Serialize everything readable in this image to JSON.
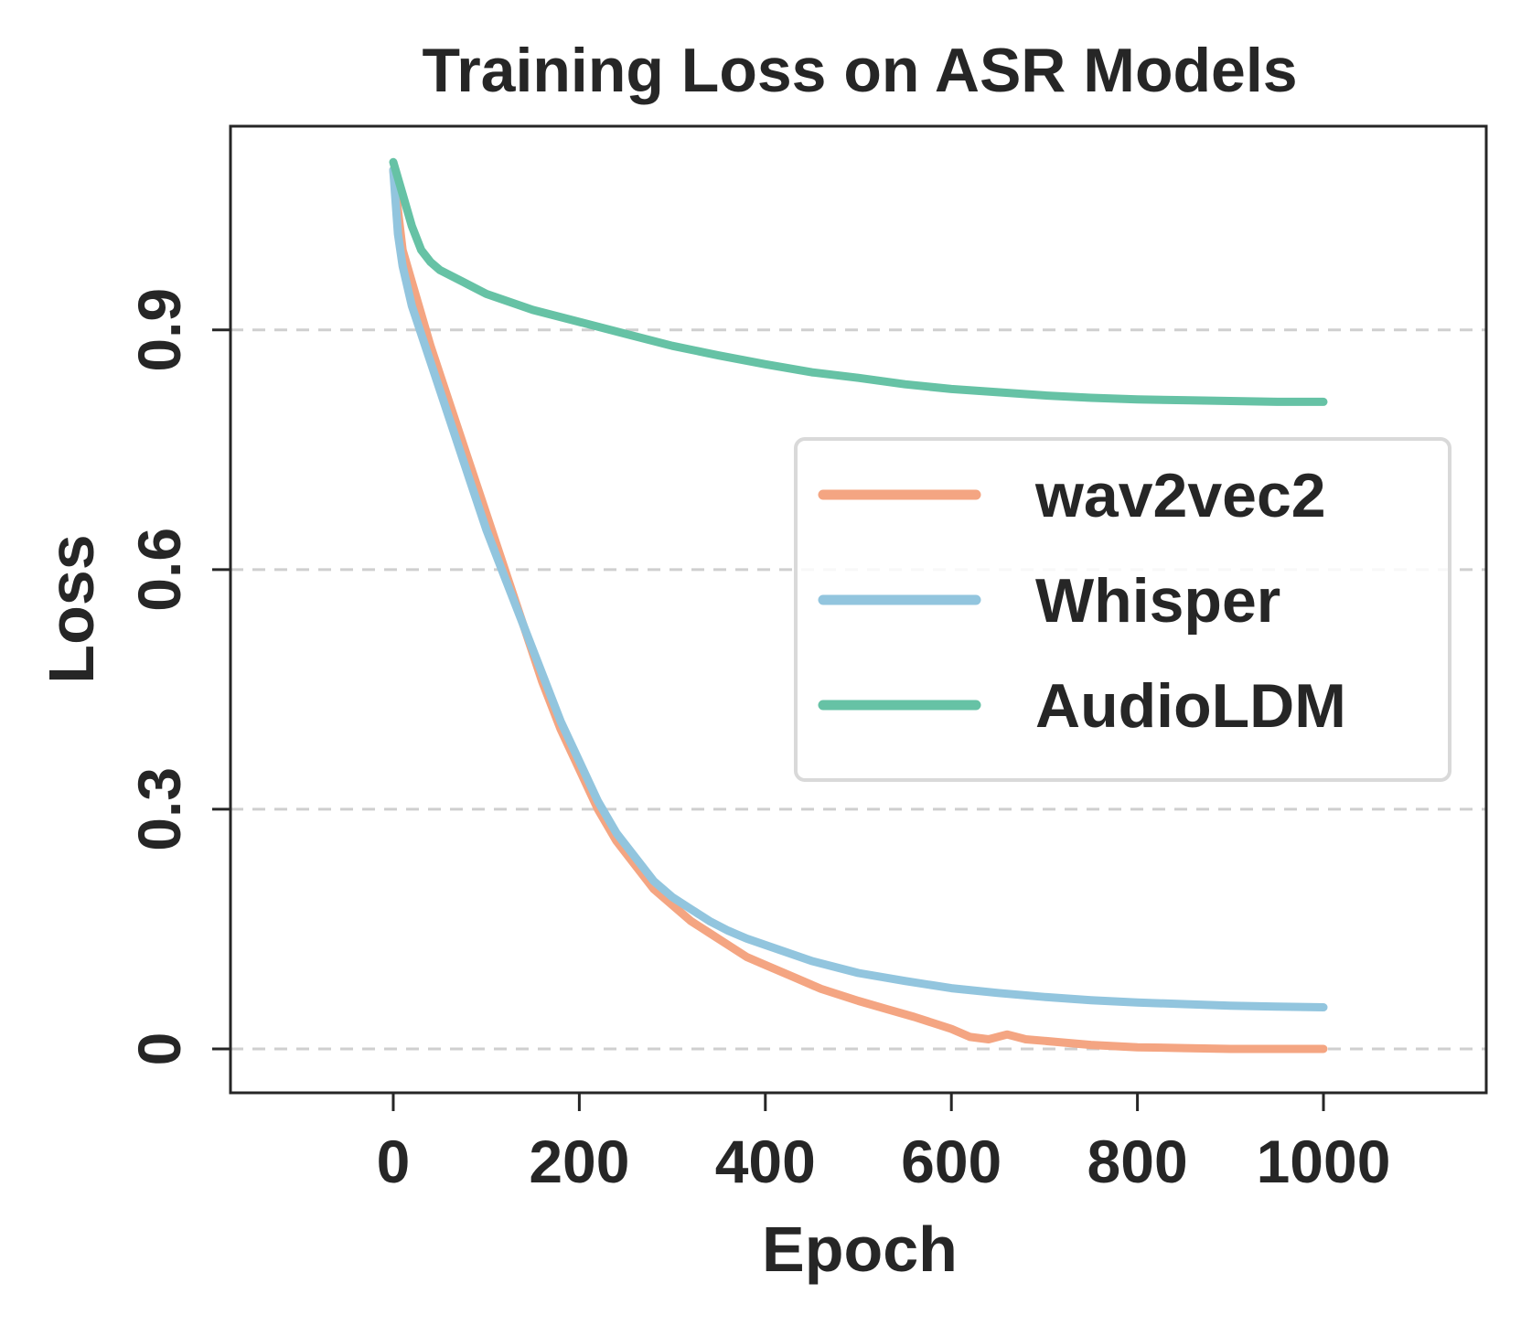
{
  "chart_data": {
    "type": "line",
    "title": "Training Loss on ASR Models",
    "xlabel": "Epoch",
    "ylabel": "Loss",
    "xlim": [
      -175,
      1175
    ],
    "ylim": [
      -0.055,
      1.155
    ],
    "xticks": [
      0,
      200,
      400,
      600,
      800,
      1000
    ],
    "xtick_labels": [
      "0",
      "200",
      "400",
      "600",
      "800",
      "1000"
    ],
    "yticks": [
      0,
      0.3,
      0.6,
      0.9
    ],
    "ytick_labels": [
      "0",
      "0.3",
      "0.6",
      "0.9"
    ],
    "grid": "y-dashed",
    "legend_position": "center-right",
    "series": [
      {
        "name": "wav2vec2",
        "color": "#f4a582",
        "x": [
          0,
          10,
          20,
          40,
          60,
          80,
          100,
          120,
          140,
          160,
          180,
          200,
          220,
          240,
          260,
          280,
          300,
          320,
          340,
          360,
          380,
          400,
          430,
          460,
          500,
          530,
          560,
          600,
          620,
          640,
          660,
          680,
          700,
          720,
          750,
          800,
          850,
          900,
          950,
          1000
        ],
        "values": [
          1.1,
          1.0,
          0.96,
          0.88,
          0.81,
          0.74,
          0.67,
          0.6,
          0.53,
          0.46,
          0.4,
          0.35,
          0.3,
          0.26,
          0.23,
          0.2,
          0.18,
          0.16,
          0.145,
          0.13,
          0.115,
          0.105,
          0.09,
          0.075,
          0.06,
          0.05,
          0.04,
          0.025,
          0.015,
          0.012,
          0.018,
          0.012,
          0.01,
          0.008,
          0.005,
          0.002,
          0.001,
          0.0,
          0.0,
          0.0
        ]
      },
      {
        "name": "Whisper",
        "color": "#92c5de",
        "x": [
          0,
          5,
          10,
          20,
          40,
          60,
          80,
          100,
          120,
          140,
          160,
          180,
          200,
          220,
          240,
          260,
          280,
          300,
          320,
          340,
          360,
          380,
          400,
          450,
          500,
          550,
          600,
          650,
          700,
          750,
          800,
          850,
          900,
          950,
          1000
        ],
        "values": [
          1.1,
          1.02,
          0.98,
          0.93,
          0.86,
          0.79,
          0.72,
          0.65,
          0.59,
          0.53,
          0.47,
          0.41,
          0.36,
          0.31,
          0.27,
          0.24,
          0.21,
          0.19,
          0.175,
          0.16,
          0.148,
          0.138,
          0.13,
          0.11,
          0.095,
          0.085,
          0.076,
          0.07,
          0.065,
          0.061,
          0.058,
          0.056,
          0.054,
          0.053,
          0.052
        ]
      },
      {
        "name": "AudioLDM",
        "color": "#66c2a5",
        "x": [
          0,
          10,
          20,
          30,
          40,
          50,
          75,
          100,
          150,
          200,
          250,
          300,
          350,
          400,
          450,
          500,
          550,
          600,
          650,
          700,
          750,
          800,
          850,
          900,
          950,
          1000
        ],
        "values": [
          1.11,
          1.07,
          1.03,
          1.0,
          0.985,
          0.975,
          0.96,
          0.945,
          0.925,
          0.91,
          0.895,
          0.88,
          0.868,
          0.857,
          0.847,
          0.84,
          0.832,
          0.826,
          0.822,
          0.818,
          0.815,
          0.813,
          0.812,
          0.811,
          0.81,
          0.81
        ]
      }
    ]
  }
}
